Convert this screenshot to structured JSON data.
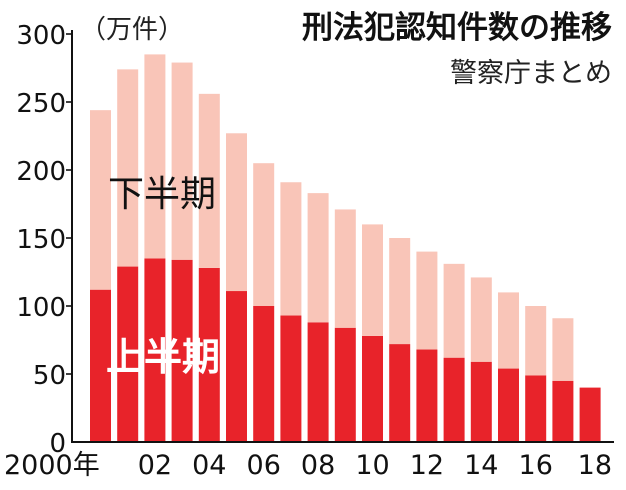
{
  "chart_data": {
    "type": "bar",
    "stacked": true,
    "title": "刑法犯認知件数の推移",
    "source": "警察庁まとめ",
    "unit_label": "（万件）",
    "ylim": [
      0,
      300
    ],
    "yticks": [
      "300",
      "250",
      "200",
      "150",
      "100",
      "50",
      "0"
    ],
    "x": [
      2000,
      2001,
      2002,
      2003,
      2004,
      2005,
      2006,
      2007,
      2008,
      2009,
      2010,
      2011,
      2012,
      2013,
      2014,
      2015,
      2016,
      2017,
      2018
    ],
    "xticks": [
      "2000年",
      "02",
      "04",
      "06",
      "08",
      "10",
      "12",
      "14",
      "16",
      "18"
    ],
    "series": [
      {
        "name": "上半期",
        "color": "#e8232a",
        "values": [
          112,
          129,
          135,
          134,
          128,
          111,
          100,
          93,
          88,
          84,
          78,
          72,
          68,
          62,
          59,
          54,
          49,
          45,
          40
        ]
      },
      {
        "name": "下半期",
        "color": "#f9c5b8",
        "values": [
          132,
          145,
          150,
          145,
          128,
          116,
          105,
          98,
          95,
          87,
          82,
          78,
          72,
          69,
          62,
          56,
          51,
          46,
          0
        ]
      }
    ]
  },
  "colors": {
    "axis": "#111111",
    "upper_label": "#ffffff",
    "lower_label": "#111111"
  }
}
